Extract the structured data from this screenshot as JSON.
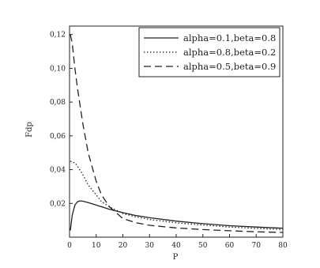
{
  "chart_data": {
    "type": "line",
    "xlabel": "P",
    "ylabel": "Fdp",
    "xlim": [
      0,
      80
    ],
    "ylim": [
      0,
      0.125
    ],
    "x_ticks": [
      "0",
      "10",
      "20",
      "30",
      "40",
      "50",
      "60",
      "70",
      "80"
    ],
    "y_ticks": [
      "0,02",
      "0,04",
      "0,06",
      "0,08",
      "0,10",
      "0,12"
    ],
    "grid": false,
    "legend_position": "top-right",
    "series": [
      {
        "name": "alpha=0.1,beta=0.8",
        "style": "solid",
        "x": [
          0.3,
          1,
          2,
          3,
          4,
          5,
          7,
          10,
          15,
          20,
          25,
          30,
          40,
          50,
          60,
          70,
          80
        ],
        "y": [
          0.004,
          0.013,
          0.019,
          0.021,
          0.0215,
          0.0213,
          0.0205,
          0.019,
          0.0165,
          0.0145,
          0.0128,
          0.0115,
          0.0095,
          0.008,
          0.0068,
          0.006,
          0.0053
        ]
      },
      {
        "name": "alpha=0.8,beta=0.2",
        "style": "dotted",
        "x": [
          0.3,
          1,
          2,
          3,
          5,
          7,
          10,
          12,
          15,
          20,
          25,
          30,
          40,
          50,
          60,
          70,
          80
        ],
        "y": [
          0.045,
          0.0445,
          0.044,
          0.042,
          0.037,
          0.031,
          0.025,
          0.021,
          0.018,
          0.014,
          0.012,
          0.0105,
          0.0085,
          0.0072,
          0.006,
          0.0052,
          0.0045
        ]
      },
      {
        "name": "alpha=0.5,beta=0.9",
        "style": "dashed",
        "x": [
          0.3,
          1,
          2,
          3,
          5,
          7,
          10,
          12,
          15,
          20,
          25,
          30,
          40,
          50,
          60,
          70,
          80
        ],
        "y": [
          0.12,
          0.115,
          0.1,
          0.088,
          0.067,
          0.05,
          0.033,
          0.025,
          0.018,
          0.011,
          0.0085,
          0.007,
          0.0055,
          0.0045,
          0.0038,
          0.0032,
          0.0028
        ]
      }
    ]
  }
}
